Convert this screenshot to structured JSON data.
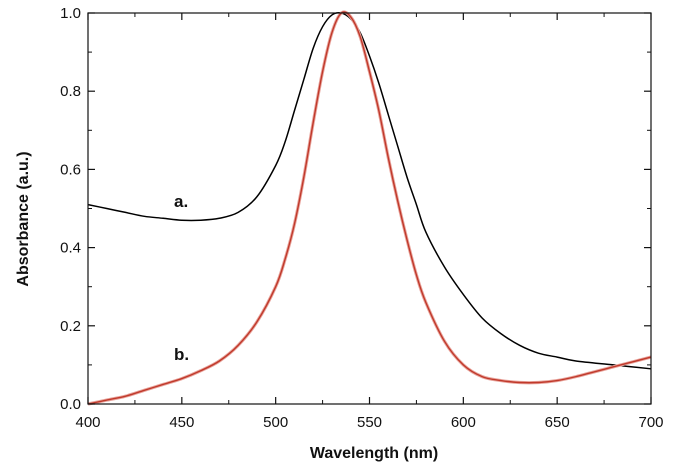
{
  "chart_data": {
    "type": "line",
    "title": "",
    "xlabel": "Wavelength (nm)",
    "ylabel": "Absorbance (a.u.)",
    "xlim": [
      400,
      700
    ],
    "ylim": [
      0.0,
      1.0
    ],
    "xticks": [
      400,
      450,
      500,
      550,
      600,
      650,
      700
    ],
    "yticks": [
      0.0,
      0.2,
      0.4,
      0.6,
      0.8,
      1.0
    ],
    "xtick_labels": [
      "400",
      "450",
      "500",
      "550",
      "600",
      "650",
      "700"
    ],
    "ytick_labels": [
      "0.0",
      "0.2",
      "0.4",
      "0.6",
      "0.8",
      "1.0"
    ],
    "grid": false,
    "legend": "none",
    "series": [
      {
        "name": "a.",
        "label": "a.",
        "color": "#000000",
        "x": [
          400,
          410,
          420,
          430,
          440,
          450,
          460,
          470,
          480,
          490,
          500,
          505,
          510,
          515,
          520,
          525,
          530,
          535,
          540,
          545,
          550,
          555,
          560,
          565,
          570,
          575,
          580,
          590,
          600,
          610,
          620,
          630,
          640,
          650,
          660,
          680,
          700
        ],
        "y": [
          0.51,
          0.5,
          0.49,
          0.48,
          0.475,
          0.47,
          0.47,
          0.475,
          0.49,
          0.53,
          0.61,
          0.67,
          0.75,
          0.83,
          0.91,
          0.965,
          0.995,
          1.0,
          0.985,
          0.95,
          0.89,
          0.82,
          0.74,
          0.66,
          0.58,
          0.51,
          0.44,
          0.35,
          0.28,
          0.22,
          0.18,
          0.15,
          0.13,
          0.12,
          0.11,
          0.1,
          0.09
        ]
      },
      {
        "name": "b.",
        "label": "b.",
        "color": "#c0392b",
        "x": [
          400,
          410,
          420,
          430,
          440,
          450,
          460,
          470,
          480,
          490,
          500,
          505,
          510,
          515,
          520,
          525,
          530,
          535,
          540,
          545,
          550,
          555,
          560,
          565,
          570,
          575,
          580,
          590,
          600,
          610,
          620,
          630,
          640,
          650,
          660,
          680,
          700
        ],
        "y": [
          0.0,
          0.01,
          0.02,
          0.035,
          0.05,
          0.065,
          0.085,
          0.11,
          0.15,
          0.21,
          0.3,
          0.37,
          0.46,
          0.58,
          0.72,
          0.85,
          0.95,
          1.0,
          0.99,
          0.94,
          0.85,
          0.75,
          0.63,
          0.52,
          0.42,
          0.33,
          0.26,
          0.16,
          0.1,
          0.07,
          0.06,
          0.055,
          0.055,
          0.06,
          0.07,
          0.095,
          0.12
        ]
      }
    ]
  }
}
